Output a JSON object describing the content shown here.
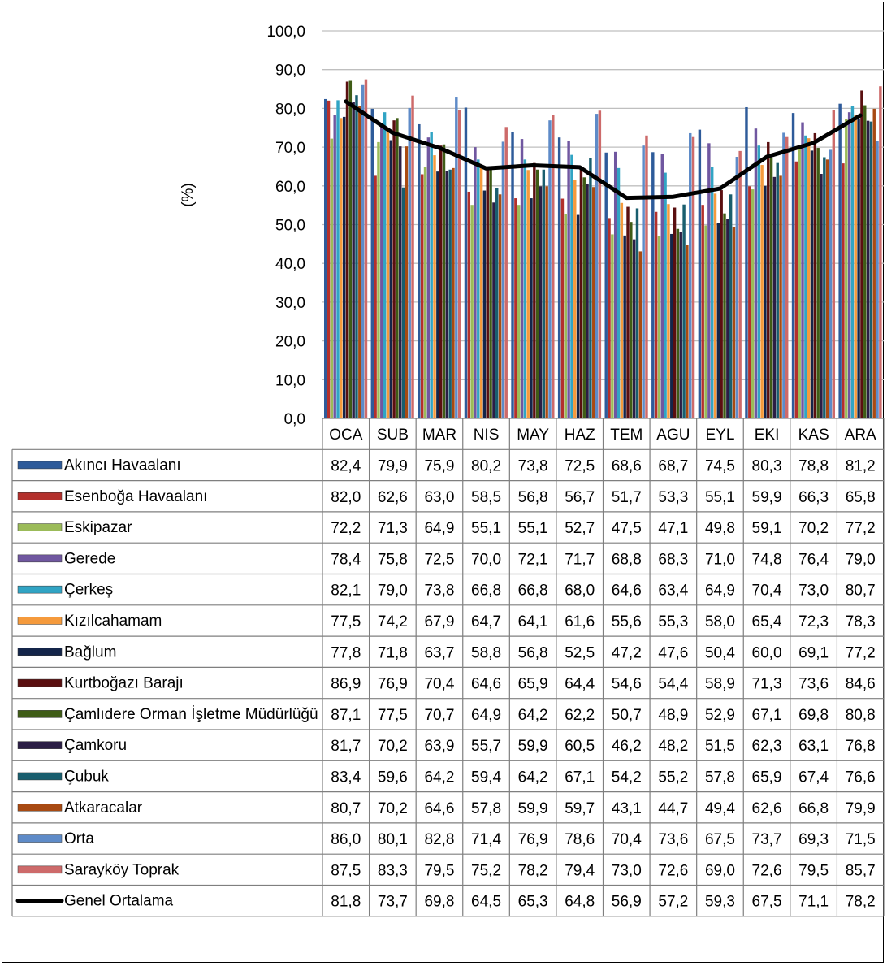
{
  "chart_data": {
    "type": "bar",
    "ylabel": "(%)",
    "ylim": [
      0,
      100
    ],
    "yticks": [
      "0,0",
      "10,0",
      "20,0",
      "30,0",
      "40,0",
      "50,0",
      "60,0",
      "70,0",
      "80,0",
      "90,0",
      "100,0"
    ],
    "grid": true,
    "legend": "data-table-below",
    "categories": [
      "OCA",
      "SUB",
      "MAR",
      "NIS",
      "MAY",
      "HAZ",
      "TEM",
      "AGU",
      "EYL",
      "EKI",
      "KAS",
      "ARA"
    ],
    "series": [
      {
        "name": "Akıncı Havaalanı",
        "color": "#2E5B9A",
        "values": [
          82.4,
          79.9,
          75.9,
          80.2,
          73.8,
          72.5,
          68.6,
          68.7,
          74.5,
          80.3,
          78.8,
          81.2
        ],
        "labels": [
          "82,4",
          "79,9",
          "75,9",
          "80,2",
          "73,8",
          "72,5",
          "68,6",
          "68,7",
          "74,5",
          "80,3",
          "78,8",
          "81,2"
        ]
      },
      {
        "name": "Esenboğa Havaalanı",
        "color": "#B3302C",
        "values": [
          82.0,
          62.6,
          63.0,
          58.5,
          56.8,
          56.7,
          51.7,
          53.3,
          55.1,
          59.9,
          66.3,
          65.8
        ],
        "labels": [
          "82,0",
          "62,6",
          "63,0",
          "58,5",
          "56,8",
          "56,7",
          "51,7",
          "53,3",
          "55,1",
          "59,9",
          "66,3",
          "65,8"
        ]
      },
      {
        "name": "Eskipazar",
        "color": "#9BBB59",
        "values": [
          72.2,
          71.3,
          64.9,
          55.1,
          55.1,
          52.7,
          47.5,
          47.1,
          49.8,
          59.1,
          70.2,
          77.2
        ],
        "labels": [
          "72,2",
          "71,3",
          "64,9",
          "55,1",
          "55,1",
          "52,7",
          "47,5",
          "47,1",
          "49,8",
          "59,1",
          "70,2",
          "77,2"
        ]
      },
      {
        "name": "Gerede",
        "color": "#7057A0",
        "values": [
          78.4,
          75.8,
          72.5,
          70.0,
          72.1,
          71.7,
          68.8,
          68.3,
          71.0,
          74.8,
          76.4,
          79.0
        ],
        "labels": [
          "78,4",
          "75,8",
          "72,5",
          "70,0",
          "72,1",
          "71,7",
          "68,8",
          "68,3",
          "71,0",
          "74,8",
          "76,4",
          "79,0"
        ]
      },
      {
        "name": "Çerkeş",
        "color": "#31A4C4",
        "values": [
          82.1,
          79.0,
          73.8,
          66.8,
          66.8,
          68.0,
          64.6,
          63.4,
          64.9,
          70.4,
          73.0,
          80.7
        ],
        "labels": [
          "82,1",
          "79,0",
          "73,8",
          "66,8",
          "66,8",
          "68,0",
          "64,6",
          "63,4",
          "64,9",
          "70,4",
          "73,0",
          "80,7"
        ]
      },
      {
        "name": "Kızılcahamam",
        "color": "#F59A3C",
        "values": [
          77.5,
          74.2,
          67.9,
          64.7,
          64.1,
          61.6,
          55.6,
          55.3,
          58.0,
          65.4,
          72.3,
          78.3
        ],
        "labels": [
          "77,5",
          "74,2",
          "67,9",
          "64,7",
          "64,1",
          "61,6",
          "55,6",
          "55,3",
          "58,0",
          "65,4",
          "72,3",
          "78,3"
        ]
      },
      {
        "name": "Bağlum",
        "color": "#14254A",
        "values": [
          77.8,
          71.8,
          63.7,
          58.8,
          56.8,
          52.5,
          47.2,
          47.6,
          50.4,
          60.0,
          69.1,
          77.2
        ],
        "labels": [
          "77,8",
          "71,8",
          "63,7",
          "58,8",
          "56,8",
          "52,5",
          "47,2",
          "47,6",
          "50,4",
          "60,0",
          "69,1",
          "77,2"
        ]
      },
      {
        "name": "Kurtboğazı Barajı",
        "color": "#5A0F10",
        "values": [
          86.9,
          76.9,
          70.4,
          64.6,
          65.9,
          64.4,
          54.6,
          54.4,
          58.9,
          71.3,
          73.6,
          84.6
        ],
        "labels": [
          "86,9",
          "76,9",
          "70,4",
          "64,6",
          "65,9",
          "64,4",
          "54,6",
          "54,4",
          "58,9",
          "71,3",
          "73,6",
          "84,6"
        ]
      },
      {
        "name": "Çamlıdere Orman İşletme Müdürlüğü",
        "color": "#3F5C16",
        "values": [
          87.1,
          77.5,
          70.7,
          64.9,
          64.2,
          62.2,
          50.7,
          48.9,
          52.9,
          67.1,
          69.8,
          80.8
        ],
        "labels": [
          "87,1",
          "77,5",
          "70,7",
          "64,9",
          "64,2",
          "62,2",
          "50,7",
          "48,9",
          "52,9",
          "67,1",
          "69,8",
          "80,8"
        ]
      },
      {
        "name": "Çamkoru",
        "color": "#2B1E45",
        "values": [
          81.7,
          70.2,
          63.9,
          55.7,
          59.9,
          60.5,
          46.2,
          48.2,
          51.5,
          62.3,
          63.1,
          76.8
        ],
        "labels": [
          "81,7",
          "70,2",
          "63,9",
          "55,7",
          "59,9",
          "60,5",
          "46,2",
          "48,2",
          "51,5",
          "62,3",
          "63,1",
          "76,8"
        ]
      },
      {
        "name": "Çubuk",
        "color": "#195E6E",
        "values": [
          83.4,
          59.6,
          64.2,
          59.4,
          64.2,
          67.1,
          54.2,
          55.2,
          57.8,
          65.9,
          67.4,
          76.6
        ],
        "labels": [
          "83,4",
          "59,6",
          "64,2",
          "59,4",
          "64,2",
          "67,1",
          "54,2",
          "55,2",
          "57,8",
          "65,9",
          "67,4",
          "76,6"
        ]
      },
      {
        "name": "Atkaracalar",
        "color": "#A84A12",
        "values": [
          80.7,
          70.2,
          64.6,
          57.8,
          59.9,
          59.7,
          43.1,
          44.7,
          49.4,
          62.6,
          66.8,
          79.9
        ],
        "labels": [
          "80,7",
          "70,2",
          "64,6",
          "57,8",
          "59,9",
          "59,7",
          "43,1",
          "44,7",
          "49,4",
          "62,6",
          "66,8",
          "79,9"
        ]
      },
      {
        "name": "Orta",
        "color": "#5E8BC8",
        "values": [
          86.0,
          80.1,
          82.8,
          71.4,
          76.9,
          78.6,
          70.4,
          73.6,
          67.5,
          73.7,
          69.3,
          71.5
        ],
        "labels": [
          "86,0",
          "80,1",
          "82,8",
          "71,4",
          "76,9",
          "78,6",
          "70,4",
          "73,6",
          "67,5",
          "73,7",
          "69,3",
          "71,5"
        ]
      },
      {
        "name": "Sarayköy Toprak",
        "color": "#CD6A6A",
        "values": [
          87.5,
          83.3,
          79.5,
          75.2,
          78.2,
          79.4,
          73.0,
          72.6,
          69.0,
          72.6,
          79.5,
          85.7
        ],
        "labels": [
          "87,5",
          "83,3",
          "79,5",
          "75,2",
          "78,2",
          "79,4",
          "73,0",
          "72,6",
          "69,0",
          "72,6",
          "79,5",
          "85,7"
        ]
      },
      {
        "name": "Genel Ortalama",
        "color": "#000000",
        "line": true,
        "values": [
          81.8,
          73.7,
          69.8,
          64.5,
          65.3,
          64.8,
          56.9,
          57.2,
          59.3,
          67.5,
          71.1,
          78.2
        ],
        "labels": [
          "81,8",
          "73,7",
          "69,8",
          "64,5",
          "65,3",
          "64,8",
          "56,9",
          "57,2",
          "59,3",
          "67,5",
          "71,1",
          "78,2"
        ]
      }
    ]
  }
}
